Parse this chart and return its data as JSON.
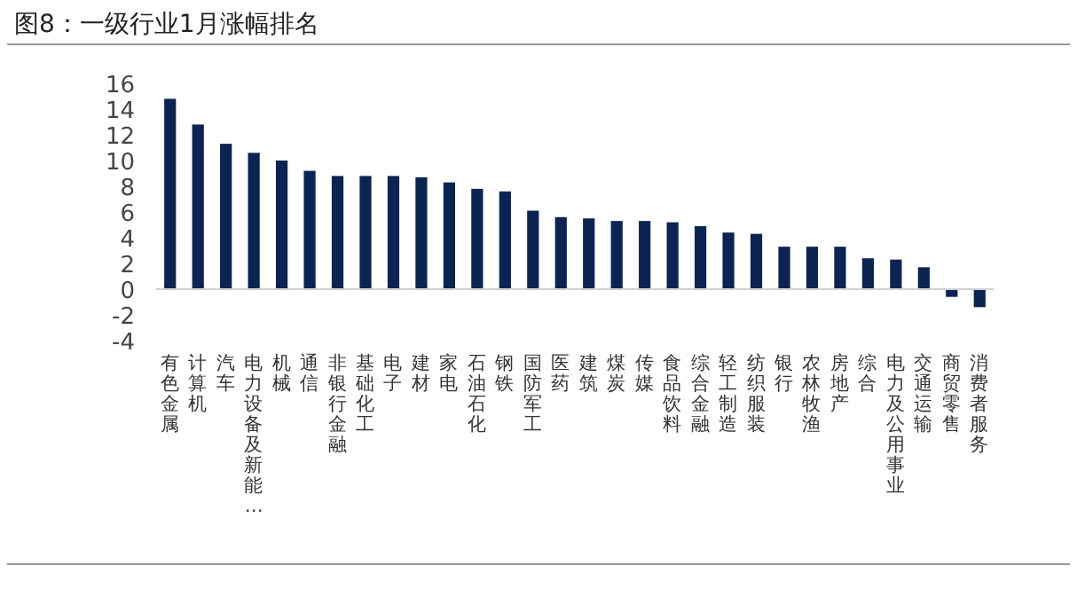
{
  "chart_data": {
    "type": "bar",
    "title": "图8：一级行业1月涨幅排名",
    "categories": [
      "有色金属",
      "计算机",
      "汽车",
      "电力设备及新能…",
      "机械",
      "通信",
      "非银行金融",
      "基础化工",
      "电子",
      "建材",
      "家电",
      "石油石化",
      "钢铁",
      "国防军工",
      "医药",
      "建筑",
      "煤炭",
      "传媒",
      "食品饮料",
      "综合金融",
      "轻工制造",
      "纺织服装",
      "银行",
      "农林牧渔",
      "房地产",
      "综合",
      "电力及公用事业",
      "交通运输",
      "商贸零售",
      "消费者服务"
    ],
    "values": [
      14.8,
      12.8,
      11.3,
      10.6,
      10.0,
      9.2,
      8.8,
      8.8,
      8.8,
      8.7,
      8.3,
      7.8,
      7.6,
      6.1,
      5.6,
      5.5,
      5.3,
      5.3,
      5.2,
      4.9,
      4.4,
      4.3,
      3.3,
      3.3,
      3.3,
      2.4,
      2.3,
      1.7,
      -0.6,
      -1.4
    ],
    "color": "#0c2452",
    "ylim": [
      -4,
      16
    ],
    "yticks": [
      -4,
      -2,
      0,
      2,
      4,
      6,
      8,
      10,
      12,
      14,
      16
    ]
  }
}
